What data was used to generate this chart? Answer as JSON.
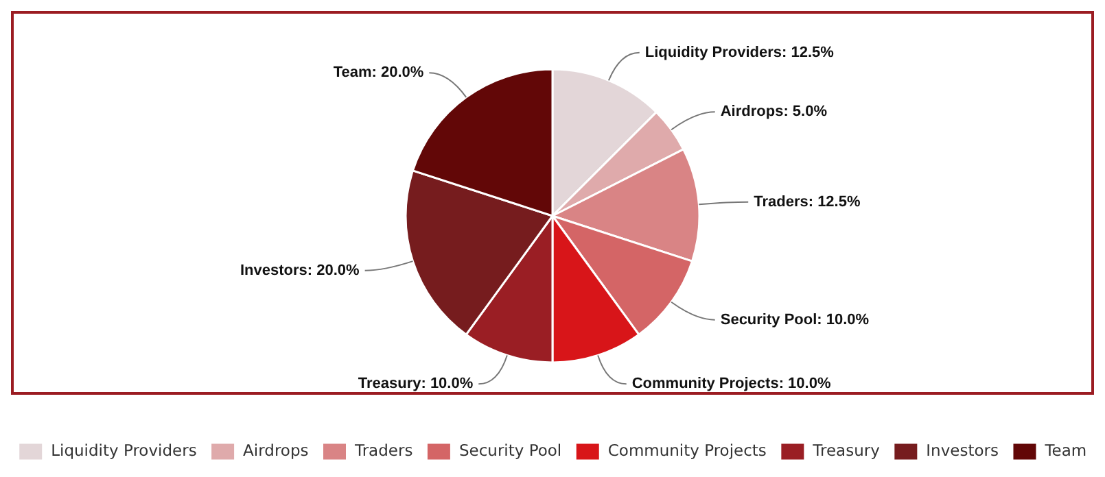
{
  "chart_data": {
    "type": "pie",
    "categories": [
      "Liquidity Providers",
      "Airdrops",
      "Traders",
      "Security Pool",
      "Community Projects",
      "Treasury",
      "Investors",
      "Team"
    ],
    "values": [
      12.5,
      5.0,
      12.5,
      10.0,
      10.0,
      10.0,
      20.0,
      20.0
    ],
    "colors": [
      "#e3d6d8",
      "#dfaaab",
      "#d98485",
      "#d46566",
      "#d81519",
      "#9a1e24",
      "#761c1e",
      "#620707"
    ],
    "value_labels": [
      "Liquidity Providers: 12.5%",
      "Airdrops: 5.0%",
      "Traders: 12.5%",
      "Security Pool: 10.0%",
      "Community Projects: 10.0%",
      "Treasury: 10.0%",
      "Investors: 20.0%",
      "Team: 20.0%"
    ],
    "legend": "bottom"
  }
}
